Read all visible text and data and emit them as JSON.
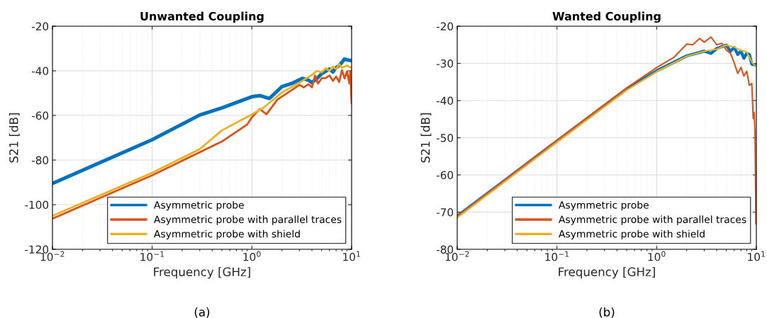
{
  "chart_data": [
    {
      "type": "line",
      "title": "Unwanted Coupling",
      "xlabel": "Frequency [GHz]",
      "ylabel": "S21 [dB]",
      "annotations": [
        "(a)"
      ],
      "log": "x",
      "grid": true,
      "legend": "bottom right",
      "xlim": [
        0.01,
        10
      ],
      "xticks": [
        {
          "value": 0.01,
          "label": "10$^{−2}$"
        },
        {
          "value": 0.1,
          "label": "10$^{−1}$"
        },
        {
          "value": 1,
          "label": "10$^{0}$"
        },
        {
          "value": 10,
          "label": "10$^{1}$"
        }
      ],
      "ylim": [
        -120,
        -20
      ],
      "yticks": [
        -120,
        -100,
        -80,
        -60,
        -40,
        -20
      ],
      "series": [
        {
          "name": "Asymmetric probe",
          "color": "#0072bd",
          "x": [
            0.01,
            0.1,
            0.3,
            0.5,
            1.0,
            1.2,
            1.5,
            2,
            2.5,
            3.2,
            3.7,
            4,
            4.5,
            5,
            5.5,
            6,
            6.5,
            7,
            7.5,
            8,
            8.5,
            9,
            10
          ],
          "values": [
            -90.5,
            -70.9,
            -59.8,
            -56.6,
            -51.6,
            -51.1,
            -52.4,
            -47.1,
            -45.7,
            -43.4,
            -44.2,
            -45.3,
            -43.4,
            -41.3,
            -40.2,
            -39.2,
            -40.5,
            -38.6,
            -37.6,
            -36.2,
            -34.7,
            -35.1,
            -35.5
          ]
        },
        {
          "name": "Asymmetric probe with parallel traces",
          "color": "#d95319",
          "x": [
            0.01,
            0.1,
            0.5,
            0.9,
            1.0,
            1.2,
            1.4,
            1.8,
            2.5,
            3,
            3.3,
            3.7,
            4,
            4.3,
            4.6,
            5,
            5.5,
            6,
            6.5,
            7,
            7.5,
            8,
            8.5,
            9,
            9.5,
            9.7,
            10
          ],
          "values": [
            -106.3,
            -86.8,
            -71.7,
            -64,
            -60.8,
            -57.1,
            -59.5,
            -52.9,
            -48.7,
            -46.3,
            -47.4,
            -46,
            -47.4,
            -42.1,
            -45.7,
            -43.4,
            -43.2,
            -42.1,
            -44.5,
            -42.6,
            -45,
            -39.7,
            -43.4,
            -40.2,
            -45.7,
            -40.2,
            -54.5
          ]
        },
        {
          "name": "Asymmetric probe with shield",
          "color": "#edb120",
          "x": [
            0.01,
            0.1,
            0.3,
            0.5,
            1.0,
            1.3,
            2,
            3,
            4,
            4.5,
            5,
            5.5,
            6,
            6.5,
            7,
            7.5,
            8,
            9,
            10
          ],
          "values": [
            -105,
            -85.7,
            -75.1,
            -66.7,
            -59.5,
            -56.6,
            -49.7,
            -45.3,
            -41.8,
            -40,
            -40.7,
            -38.9,
            -40,
            -38.1,
            -39.2,
            -37,
            -38.6,
            -37.6,
            -38.8
          ]
        }
      ]
    },
    {
      "type": "line",
      "title": "Wanted Coupling",
      "xlabel": "Frequency [GHz]",
      "ylabel": "S21 [dB]",
      "annotations": [
        "(b)"
      ],
      "log": "x",
      "grid": true,
      "legend": "bottom right",
      "xlim": [
        0.01,
        10
      ],
      "xticks": [
        {
          "value": 0.01,
          "label": "10$^{−2}$"
        },
        {
          "value": 0.1,
          "label": "10$^{−1}$"
        },
        {
          "value": 1,
          "label": "10$^{0}$"
        },
        {
          "value": 10,
          "label": "10$^{1}$"
        }
      ],
      "ylim": [
        -80,
        -20
      ],
      "yticks": [
        -80,
        -70,
        -60,
        -50,
        -40,
        -30,
        -20
      ],
      "series": [
        {
          "name": "Asymmetric probe",
          "color": "#0072bd",
          "x": [
            0.01,
            0.1,
            0.5,
            1,
            2,
            3,
            3.5,
            4,
            5,
            5.5,
            6,
            6.5,
            7,
            7.5,
            8,
            8.5,
            9,
            10
          ],
          "values": [
            -71.1,
            -50.9,
            -36.9,
            -32,
            -28,
            -26.7,
            -27.3,
            -26,
            -25.1,
            -26.7,
            -25.7,
            -27.6,
            -26.7,
            -28.6,
            -27.3,
            -27.6,
            -30.2,
            -30.5
          ]
        },
        {
          "name": "Asymmetric probe with parallel traces",
          "color": "#d95319",
          "x": [
            0.01,
            0.1,
            0.5,
            1,
            1.5,
            2,
            2.3,
            2.7,
            3,
            3.5,
            4,
            4.5,
            5,
            5.5,
            6,
            6.5,
            7,
            7.5,
            8,
            8.5,
            9,
            9.3,
            9.5,
            9.7,
            9.8,
            9.9,
            10
          ],
          "values": [
            -71.1,
            -50.7,
            -36.6,
            -31.1,
            -28.3,
            -24.8,
            -25,
            -23.3,
            -24.3,
            -22.9,
            -25,
            -24.6,
            -26.4,
            -27.3,
            -29.9,
            -32.7,
            -31.1,
            -33.4,
            -32.1,
            -35.9,
            -35.4,
            -44.8,
            -43.2,
            -49.3,
            -60.8,
            -73.2,
            -61.4
          ]
        },
        {
          "name": "Asymmetric probe with shield",
          "color": "#edb120",
          "x": [
            0.01,
            0.1,
            0.5,
            1,
            2,
            3,
            4,
            5,
            6,
            7,
            8,
            9,
            10
          ],
          "values": [
            -71.5,
            -51.2,
            -37.2,
            -32.2,
            -28.1,
            -26.7,
            -26.2,
            -25.1,
            -25.6,
            -26.5,
            -26.9,
            -29.6,
            -31
          ]
        }
      ]
    }
  ]
}
